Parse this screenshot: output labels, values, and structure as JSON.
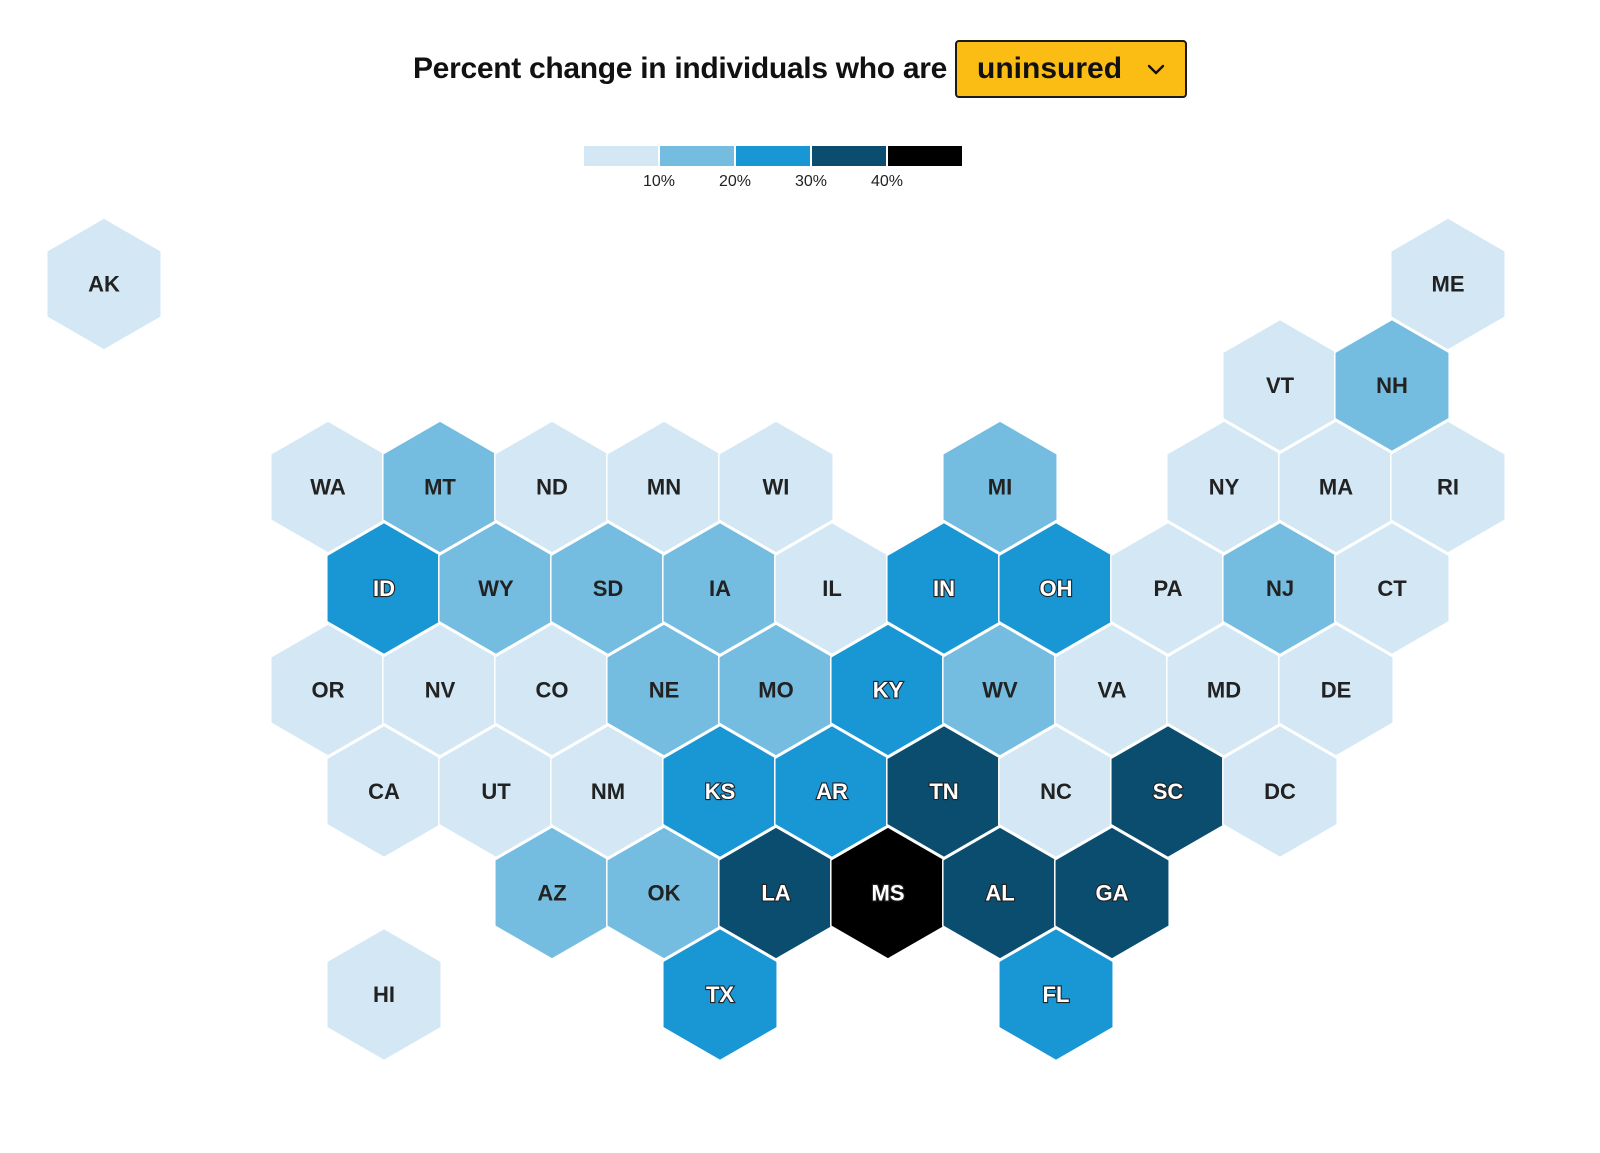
{
  "header": {
    "title": "Percent change in individuals who are",
    "dropdown_value": "uninsured"
  },
  "colors": {
    "accent": "#fbbd14",
    "levels": [
      "#d3e8f4",
      "#74bde0",
      "#1996d4",
      "#0b4d6e",
      "#000000"
    ]
  },
  "legend": {
    "ticks": [
      "10%",
      "20%",
      "30%",
      "40%"
    ]
  },
  "chart_data": {
    "type": "hex-tile-map",
    "states": [
      {
        "abbr": "AK",
        "level": 0
      },
      {
        "abbr": "ME",
        "level": 0
      },
      {
        "abbr": "VT",
        "level": 0
      },
      {
        "abbr": "NH",
        "level": 1
      },
      {
        "abbr": "WA",
        "level": 0
      },
      {
        "abbr": "MT",
        "level": 1
      },
      {
        "abbr": "ND",
        "level": 0
      },
      {
        "abbr": "MN",
        "level": 0
      },
      {
        "abbr": "WI",
        "level": 0
      },
      {
        "abbr": "MI",
        "level": 1
      },
      {
        "abbr": "NY",
        "level": 0
      },
      {
        "abbr": "MA",
        "level": 0
      },
      {
        "abbr": "RI",
        "level": 0
      },
      {
        "abbr": "ID",
        "level": 2
      },
      {
        "abbr": "WY",
        "level": 1
      },
      {
        "abbr": "SD",
        "level": 1
      },
      {
        "abbr": "IA",
        "level": 1
      },
      {
        "abbr": "IL",
        "level": 0
      },
      {
        "abbr": "IN",
        "level": 2
      },
      {
        "abbr": "OH",
        "level": 2
      },
      {
        "abbr": "PA",
        "level": 0
      },
      {
        "abbr": "NJ",
        "level": 1
      },
      {
        "abbr": "CT",
        "level": 0
      },
      {
        "abbr": "OR",
        "level": 0
      },
      {
        "abbr": "NV",
        "level": 0
      },
      {
        "abbr": "CO",
        "level": 0
      },
      {
        "abbr": "NE",
        "level": 1
      },
      {
        "abbr": "MO",
        "level": 1
      },
      {
        "abbr": "KY",
        "level": 2
      },
      {
        "abbr": "WV",
        "level": 1
      },
      {
        "abbr": "VA",
        "level": 0
      },
      {
        "abbr": "MD",
        "level": 0
      },
      {
        "abbr": "DE",
        "level": 0
      },
      {
        "abbr": "CA",
        "level": 0
      },
      {
        "abbr": "UT",
        "level": 0
      },
      {
        "abbr": "NM",
        "level": 0
      },
      {
        "abbr": "KS",
        "level": 2
      },
      {
        "abbr": "AR",
        "level": 2
      },
      {
        "abbr": "TN",
        "level": 3
      },
      {
        "abbr": "NC",
        "level": 0
      },
      {
        "abbr": "SC",
        "level": 3
      },
      {
        "abbr": "DC",
        "level": 0
      },
      {
        "abbr": "AZ",
        "level": 1
      },
      {
        "abbr": "OK",
        "level": 1
      },
      {
        "abbr": "LA",
        "level": 3
      },
      {
        "abbr": "MS",
        "level": 4
      },
      {
        "abbr": "AL",
        "level": 3
      },
      {
        "abbr": "GA",
        "level": 3
      },
      {
        "abbr": "HI",
        "level": 0
      },
      {
        "abbr": "TX",
        "level": 2
      },
      {
        "abbr": "FL",
        "level": 2
      }
    ]
  }
}
